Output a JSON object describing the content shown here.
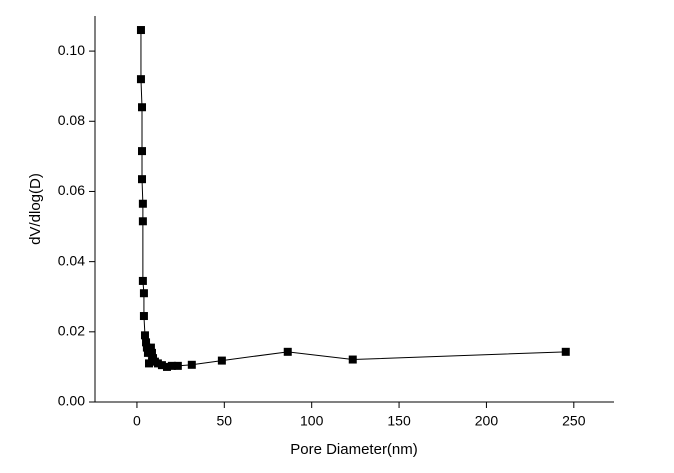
{
  "chart_data": {
    "type": "line",
    "x_label": "Pore Diameter(nm)",
    "y_label": "dV/dlog(D)",
    "series": [
      {
        "color": "#000000",
        "marker": "square",
        "x": [
          2.3,
          2.3,
          2.9,
          2.9,
          2.9,
          3.4,
          3.4,
          3.4,
          4.0,
          4.0,
          4.6,
          5.2,
          5.7,
          6.3,
          6.9,
          8.0,
          8.6,
          9.2,
          10.3,
          12.0,
          14.3,
          17.2,
          20.0,
          23.4,
          31.4,
          48.6,
          86.3,
          123.5,
          245.4
        ],
        "values": [
          0.106,
          0.092,
          0.084,
          0.0715,
          0.0635,
          0.0565,
          0.0515,
          0.0345,
          0.031,
          0.0245,
          0.019,
          0.017,
          0.0155,
          0.014,
          0.011,
          0.0155,
          0.014,
          0.0125,
          0.0115,
          0.011,
          0.0105,
          0.01,
          0.0103,
          0.0103,
          0.0106,
          0.0118,
          0.0143,
          0.0121,
          0.0143
        ]
      }
    ],
    "xlim": [
      -24,
      273
    ],
    "xticks": [
      0,
      50,
      100,
      150,
      200,
      250
    ],
    "ylim": [
      0,
      0.11
    ],
    "yticks": [
      {
        "value": 0,
        "label": "0.00"
      },
      {
        "value": 0.02,
        "label": "0.02"
      },
      {
        "value": 0.04,
        "label": "0.04"
      },
      {
        "value": 0.06,
        "label": "0.06"
      },
      {
        "value": 0.08,
        "label": "0.08"
      },
      {
        "value": 0.1,
        "label": "0.10"
      }
    ],
    "grid": false
  }
}
